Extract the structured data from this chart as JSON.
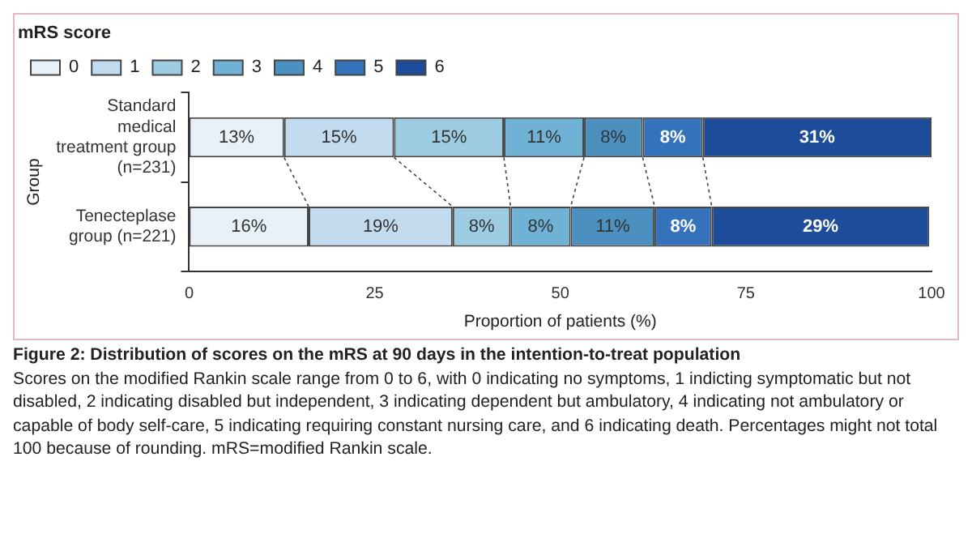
{
  "chart_data": {
    "type": "bar",
    "orientation": "horizontal",
    "stacked": true,
    "title": "Figure 2: Distribution of scores on the mRS at 90 days in the intention-to-treat population",
    "xlabel": "Proportion of patients (%)",
    "ylabel": "Group",
    "legend_title": "mRS score",
    "legend": "top left",
    "grid": false,
    "xlim": [
      0,
      100
    ],
    "xticks": [
      0,
      25,
      50,
      75,
      100
    ],
    "categories": [
      "Standard medical treatment group (n=231)",
      "Tenecteplase group (n=221)"
    ],
    "series": [
      {
        "name": "0",
        "color": "#e8f0f8",
        "values": [
          12.8,
          16.1
        ],
        "value_labels": [
          "13%",
          "16%"
        ]
      },
      {
        "name": "1",
        "color": "#c2dbee",
        "values": [
          14.8,
          19.4
        ],
        "value_labels": [
          "15%",
          "19%"
        ]
      },
      {
        "name": "2",
        "color": "#9dcbe2",
        "values": [
          14.8,
          7.8
        ],
        "value_labels": [
          "15%",
          "8%"
        ]
      },
      {
        "name": "3",
        "color": "#70b2d5",
        "values": [
          10.8,
          8.1
        ],
        "value_labels": [
          "11%",
          "8%"
        ]
      },
      {
        "name": "4",
        "color": "#4c90c0",
        "values": [
          7.9,
          11.3
        ],
        "value_labels": [
          "8%",
          "11%"
        ]
      },
      {
        "name": "5",
        "color": "#3473bb",
        "values": [
          8.1,
          7.7
        ],
        "value_labels": [
          "8%",
          "8%"
        ]
      },
      {
        "name": "6",
        "color": "#1d4c9b",
        "values": [
          30.8,
          29.3
        ],
        "value_labels": [
          "31%",
          "29%"
        ]
      }
    ],
    "annotations": [
      "Scores on the modified Rankin scale range from 0 to 6, with 0 indicating no symptoms, 1 indicting symptomatic but not disabled, 2 indicating disabled but independent, 3 indicating dependent but ambulatory, 4 indicating not ambulatory or capable of body self-care, 5 indicating requiring constant nursing care, and 6 indicating death. Percentages might not total 100 because of rounding. mRS=modified Rankin scale."
    ]
  }
}
